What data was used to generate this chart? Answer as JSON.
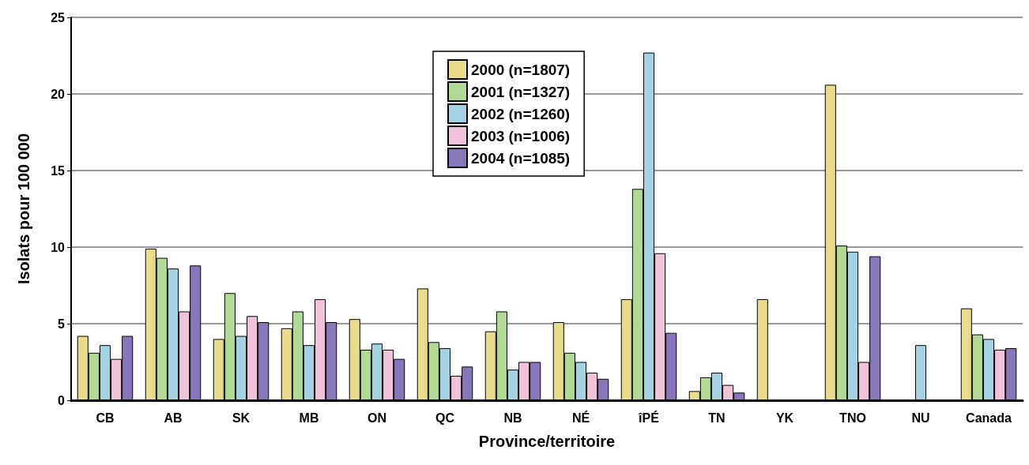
{
  "chart_data": {
    "type": "bar",
    "xlabel": "Province/territoire",
    "ylabel": "Isolats pour 100 000",
    "categories": [
      "CB",
      "AB",
      "SK",
      "MB",
      "ON",
      "QC",
      "NB",
      "NÉ",
      "îPÉ",
      "TN",
      "YK",
      "TNO",
      "NU",
      "Canada"
    ],
    "series": [
      {
        "name": "2000 (n=1807)",
        "color": "#e8dc8a",
        "values": [
          4.2,
          9.9,
          4.0,
          4.7,
          5.3,
          7.3,
          4.5,
          5.1,
          6.6,
          0.6,
          6.6,
          20.6,
          0,
          6.0
        ]
      },
      {
        "name": "2001 (n=1327)",
        "color": "#b0da93",
        "values": [
          3.1,
          9.3,
          7.0,
          5.8,
          3.3,
          3.8,
          5.8,
          3.1,
          13.8,
          1.5,
          0,
          10.1,
          0,
          4.3
        ]
      },
      {
        "name": "2002 (n=1260)",
        "color": "#a3d3e3",
        "values": [
          3.6,
          8.6,
          4.2,
          3.6,
          3.7,
          3.4,
          2.0,
          2.5,
          22.7,
          1.8,
          0,
          9.7,
          3.6,
          4.0
        ]
      },
      {
        "name": "2003 (n=1006)",
        "color": "#f0c3da",
        "values": [
          2.7,
          5.8,
          5.5,
          6.6,
          3.3,
          1.6,
          2.5,
          1.8,
          9.6,
          1.0,
          0,
          2.5,
          0,
          3.3
        ]
      },
      {
        "name": "2004 (n=1085)",
        "color": "#8878bb",
        "values": [
          4.2,
          8.8,
          5.1,
          5.1,
          2.7,
          2.2,
          2.5,
          1.4,
          4.4,
          0.5,
          0,
          9.4,
          0,
          3.4
        ]
      }
    ],
    "ylim": [
      0,
      25
    ],
    "yticks": [
      0,
      5,
      10,
      15,
      20,
      25
    ],
    "grid": "y",
    "legend": "top"
  }
}
